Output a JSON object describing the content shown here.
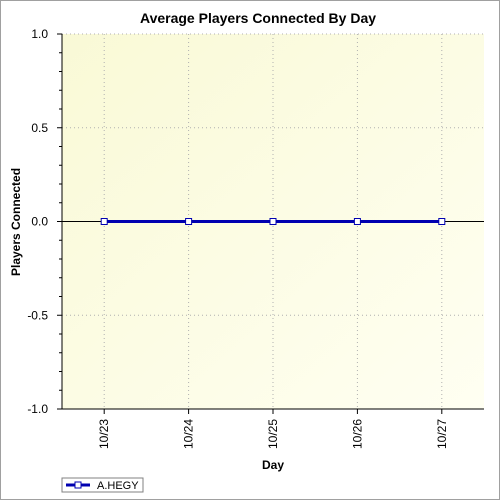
{
  "chart_data": {
    "type": "line",
    "title": "Average Players Connected By Day",
    "xlabel": "Day",
    "ylabel": "Players Connected",
    "categories": [
      "10/23",
      "10/24",
      "10/25",
      "10/26",
      "10/27"
    ],
    "ylim": [
      -1.0,
      1.0
    ],
    "yticks": [
      "1.0",
      "0.5",
      "0.0",
      "-0.5",
      "-1.0"
    ],
    "grid": true,
    "legend_position": "bottom-left",
    "series": [
      {
        "name": "A.HEGY",
        "values": [
          0,
          0,
          0,
          0,
          0
        ],
        "color": "#0000b0"
      }
    ]
  }
}
